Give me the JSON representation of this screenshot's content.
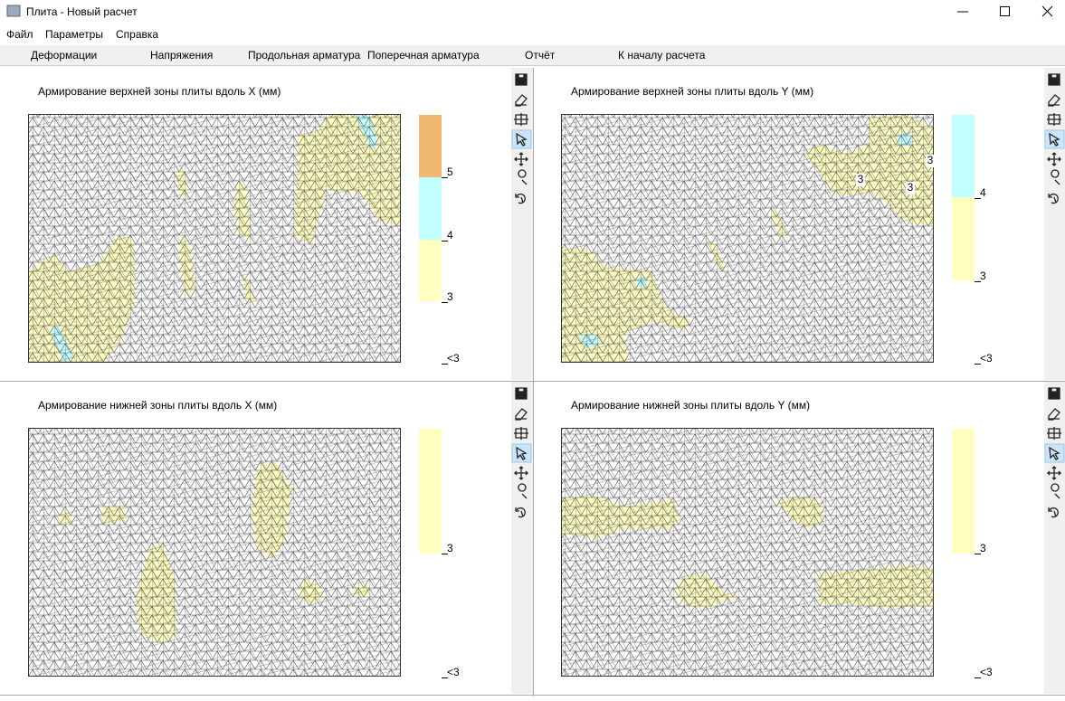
{
  "window": {
    "title": "Плита - Новый расчет"
  },
  "menu": [
    "Файл",
    "Параметры",
    "Справка"
  ],
  "tabs": [
    "Деформации",
    "Напряжения",
    "Продольная арматура",
    "Поперечная арматура",
    "Отчёт",
    "К началу расчета"
  ],
  "panels": [
    {
      "title": "Армирование верхней зоны плиты вдоль X (мм)",
      "legend": [
        "5",
        "4",
        "3",
        "<3"
      ]
    },
    {
      "title": "Армирование верхней зоны плиты вдоль Y (мм)",
      "legend": [
        "4",
        "3",
        "<3"
      ],
      "mesh_labels": [
        "3",
        "3",
        "3"
      ]
    },
    {
      "title": "Армирование нижней зоны плиты вдоль X (мм)",
      "legend": [
        "3",
        "<3"
      ]
    },
    {
      "title": "Армирование нижней зоны плиты вдоль Y (мм)",
      "legend": [
        "3",
        "<3"
      ]
    }
  ]
}
